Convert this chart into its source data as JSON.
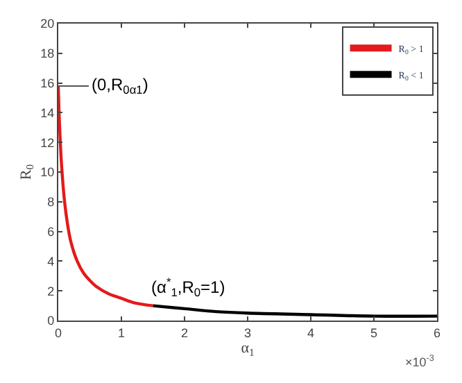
{
  "chart_data": {
    "type": "line",
    "xlabel": "α$_{1}$",
    "ylabel": "R$_{0}$",
    "series": [
      {
        "name": "R$_{0}$ > 1",
        "color": "#e41a1c",
        "x": [
          0,
          0.02,
          0.05,
          0.1,
          0.15,
          0.2,
          0.3,
          0.4,
          0.5,
          0.6,
          0.8,
          1.0,
          1.2,
          1.5
        ],
        "values": [
          15.8,
          13.2,
          10.6,
          8.0,
          6.4,
          5.3,
          4.0,
          3.2,
          2.7,
          2.3,
          1.8,
          1.5,
          1.2,
          1.0
        ]
      },
      {
        "name": "R$_{0}$ < 1",
        "color": "#000000",
        "x": [
          1.5,
          2,
          2.5,
          3,
          4,
          5,
          6
        ],
        "values": [
          1.0,
          0.8,
          0.6,
          0.5,
          0.4,
          0.3,
          0.3
        ]
      }
    ],
    "xlim": [
      0,
      6
    ],
    "xticks": [
      0,
      1,
      2,
      3,
      4,
      5,
      6
    ],
    "ylim": [
      0,
      20
    ],
    "yticks": [
      0,
      2,
      4,
      6,
      8,
      10,
      12,
      14,
      16,
      18,
      20
    ],
    "annotations": [
      {
        "text": "(0,R$_{0α1}$)",
        "x": 0,
        "y": 15.8
      },
      {
        "text": "(α$^{*}$$_{1}$,R$_{0}$=1)",
        "x": 1.5,
        "y": 1.0
      },
      "×10$^{-3}$"
    ],
    "legend": "top right",
    "marker": "none",
    "line_style": "solid"
  }
}
